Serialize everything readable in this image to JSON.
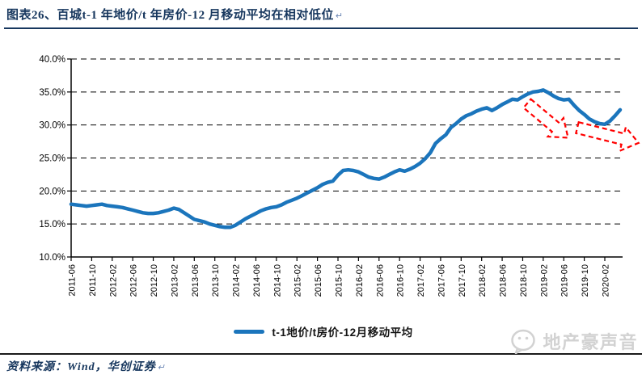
{
  "figure": {
    "title": "图表26、百城t-1 年地价/t 年房价-12 月移动平均在相对低位",
    "return_mark": "↵",
    "source_label": "资料来源：Wind，华创证券",
    "watermark_text": "地产豪声音"
  },
  "colors": {
    "title_navy": "#17375E",
    "line_blue": "#1B75BC",
    "arrow_red": "#FF0000",
    "grid_black": "#000000",
    "watermark_gray": "#D2D2D2"
  },
  "chart_data": {
    "type": "line",
    "title": "",
    "legend": [
      "t-1地价/t房价-12月移动平均"
    ],
    "legend_position": "bottom",
    "grid": "horizontal-dashed",
    "ylim": [
      10,
      40
    ],
    "ytick_step": 5,
    "ytick_labels": [
      "40.0%",
      "35.0%",
      "30.0%",
      "25.0%",
      "20.0%",
      "15.0%",
      "10.0%"
    ],
    "xtick_labels": [
      "2011-06",
      "2011-10",
      "2012-02",
      "2012-06",
      "2012-10",
      "2013-02",
      "2013-06",
      "2013-10",
      "2014-02",
      "2014-06",
      "2014-10",
      "2015-02",
      "2015-06",
      "2015-10",
      "2016-02",
      "2016-06",
      "2016-10",
      "2017-02",
      "2017-06",
      "2017-10",
      "2018-02",
      "2018-06",
      "2018-10",
      "2019-02",
      "2019-06",
      "2019-10",
      "2020-02"
    ],
    "x_frequency": "monthly",
    "start_month": "2011-06",
    "end_month": "2020-05",
    "series": [
      {
        "name": "t-1地价/t房价-12月移动平均",
        "unit": "%",
        "values": [
          18.0,
          17.9,
          17.8,
          17.7,
          17.8,
          17.9,
          18.0,
          17.8,
          17.7,
          17.6,
          17.5,
          17.3,
          17.1,
          16.9,
          16.7,
          16.6,
          16.6,
          16.7,
          16.9,
          17.1,
          17.4,
          17.2,
          16.7,
          16.2,
          15.7,
          15.5,
          15.3,
          15.0,
          14.8,
          14.6,
          14.5,
          14.5,
          14.8,
          15.3,
          15.8,
          16.2,
          16.6,
          17.0,
          17.3,
          17.5,
          17.6,
          17.9,
          18.3,
          18.6,
          18.9,
          19.3,
          19.7,
          20.1,
          20.5,
          21.0,
          21.3,
          21.5,
          22.4,
          23.1,
          23.2,
          23.1,
          22.9,
          22.5,
          22.1,
          21.9,
          21.8,
          22.1,
          22.5,
          22.9,
          23.2,
          23.0,
          23.3,
          23.7,
          24.2,
          24.9,
          25.8,
          27.2,
          27.9,
          28.5,
          29.6,
          30.2,
          30.9,
          31.4,
          31.7,
          32.1,
          32.4,
          32.6,
          32.2,
          32.6,
          33.1,
          33.5,
          33.9,
          33.8,
          34.3,
          34.7,
          35.0,
          35.1,
          35.3,
          34.9,
          34.4,
          34.0,
          33.8,
          33.9,
          33.0,
          32.2,
          31.6,
          30.9,
          30.5,
          30.2,
          30.1,
          30.6,
          31.4,
          32.3
        ]
      }
    ],
    "annotations": [
      {
        "shape": "block-arrow",
        "meaning": "decline-trend",
        "x": 652,
        "y": 68,
        "angle_deg": 40,
        "length": 66
      },
      {
        "shape": "block-arrow",
        "meaning": "sideways-low-trend",
        "x": 714,
        "y": 98,
        "angle_deg": 14,
        "length": 78
      }
    ]
  }
}
